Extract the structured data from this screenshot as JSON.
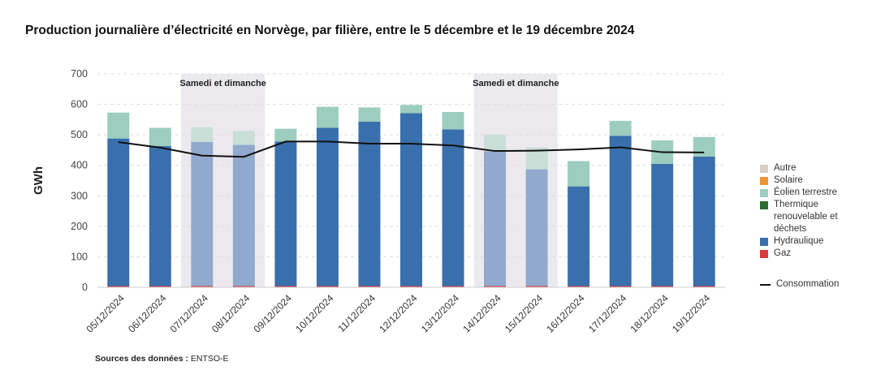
{
  "title": "Production journalière d’électricité en Norvège, par filière, entre le 5 décembre et le 19 décembre 2024",
  "source_label": "Sources des données :",
  "source_value": "ENTSO-E",
  "chart_data": {
    "type": "bar",
    "stacked": true,
    "ylabel": "GWh",
    "xlabel": "",
    "ylim": [
      0,
      700
    ],
    "yticks": [
      0,
      100,
      200,
      300,
      400,
      500,
      600,
      700
    ],
    "grid": true,
    "legend_position": "right",
    "categories": [
      "05/12/2024",
      "06/12/2024",
      "07/12/2024",
      "08/12/2024",
      "09/12/2024",
      "10/12/2024",
      "11/12/2024",
      "12/12/2024",
      "13/12/2024",
      "14/12/2024",
      "15/12/2024",
      "16/12/2024",
      "17/12/2024",
      "18/12/2024",
      "19/12/2024"
    ],
    "weekend_label": "Samedi et dimanche",
    "weekend_ranges": [
      [
        2,
        3
      ],
      [
        9,
        10
      ]
    ],
    "series": [
      {
        "name": "Gaz",
        "color": "#d93a3a",
        "values": [
          4,
          4,
          4,
          4,
          4,
          4,
          4,
          4,
          4,
          4,
          4,
          4,
          4,
          4,
          4
        ]
      },
      {
        "name": "Hydraulique",
        "color": "#3a6fad",
        "values": [
          484,
          459,
          473,
          463,
          474,
          519,
          539,
          567,
          514,
          442,
          383,
          327,
          493,
          401,
          425
        ]
      },
      {
        "name": "Thermique renouvelable et déchets",
        "color": "#2e6b35",
        "values": [
          0,
          0,
          0,
          0,
          0,
          0,
          0,
          0,
          0,
          0,
          0,
          0,
          0,
          0,
          0
        ]
      },
      {
        "name": "Éolien terrestre",
        "color": "#9ccdbf",
        "values": [
          85,
          60,
          48,
          46,
          42,
          69,
          47,
          27,
          57,
          55,
          72,
          83,
          49,
          77,
          64
        ]
      },
      {
        "name": "Solaire",
        "color": "#e9973a",
        "values": [
          0,
          0,
          0,
          0,
          0,
          0,
          0,
          0,
          0,
          0,
          0,
          0,
          0,
          0,
          0
        ]
      },
      {
        "name": "Autre",
        "color": "#d8d0c6",
        "values": [
          0,
          0,
          0,
          0,
          0,
          0,
          0,
          0,
          0,
          0,
          0,
          0,
          0,
          0,
          0
        ]
      }
    ],
    "line_series": {
      "name": "Consommation",
      "color": "#111111",
      "values": [
        476,
        458,
        432,
        428,
        478,
        478,
        471,
        471,
        465,
        447,
        448,
        452,
        459,
        443,
        442
      ]
    }
  }
}
